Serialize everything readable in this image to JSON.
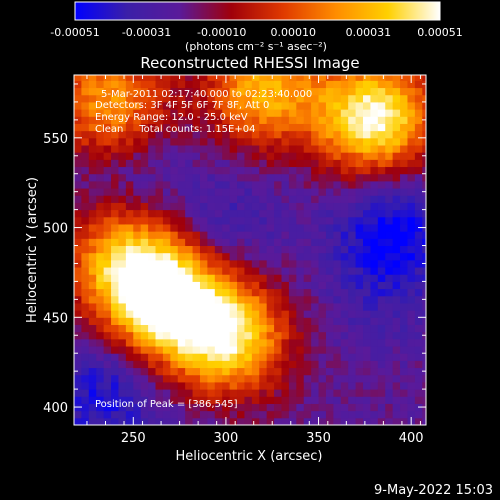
{
  "colorbar": {
    "ticks": [
      "-0.00051",
      "-0.00031",
      "-0.00010",
      "0.00010",
      "0.00031",
      "0.00051"
    ],
    "unit_label": "(photons cm⁻² s⁻¹ asec⁻²)",
    "range": [
      -0.00051,
      0.00051
    ],
    "colors": [
      "#0000ff",
      "#3b1fa8",
      "#5a1a9a",
      "#a0000a",
      "#e03a00",
      "#ff8c00",
      "#ffd000",
      "#ffffff"
    ]
  },
  "chart_data": {
    "type": "heatmap",
    "title": "Reconstructed RHESSI Image",
    "xlabel": "Heliocentric X (arcsec)",
    "ylabel": "Heliocentric Y (arcsec)",
    "xlim": [
      218,
      408
    ],
    "ylim": [
      390,
      585
    ],
    "x_ticks": [
      250,
      300,
      350,
      400
    ],
    "y_ticks": [
      400,
      450,
      500,
      550
    ],
    "grid": false,
    "value_unit": "photons cm-2 s-1 asec-2",
    "value_range": [
      -0.00051,
      0.00051
    ],
    "annotations": {
      "time": "5-Mar-2011 02:17:40.000 to 02:23:40.000",
      "detectors": "Detectors: 3F 4F 5F 6F 7F 8F, Att 0",
      "energy": "Energy Range: 12.0 - 25.0 keV",
      "method_counts": "Clean     Total counts: 1.15E+04",
      "peak": "Position of Peak = [386,545]"
    },
    "bright_regions": [
      {
        "x": 378,
        "y": 560,
        "value": 0.00051
      },
      {
        "x": 268,
        "y": 455,
        "value": 0.00045
      },
      {
        "x": 300,
        "y": 437,
        "value": 0.0004
      },
      {
        "x": 245,
        "y": 478,
        "value": 0.00035
      },
      {
        "x": 318,
        "y": 575,
        "value": 0.0003
      },
      {
        "x": 235,
        "y": 568,
        "value": 0.00025
      }
    ],
    "dark_regions": [
      {
        "x": 388,
        "y": 495,
        "value": -0.00051
      },
      {
        "x": 300,
        "y": 500,
        "value": -0.00035
      },
      {
        "x": 250,
        "y": 530,
        "value": -0.0003
      },
      {
        "x": 232,
        "y": 405,
        "value": -0.00045
      },
      {
        "x": 380,
        "y": 455,
        "value": -0.0003
      }
    ]
  },
  "footer": {
    "timestamp": "9-May-2022 15:03"
  }
}
